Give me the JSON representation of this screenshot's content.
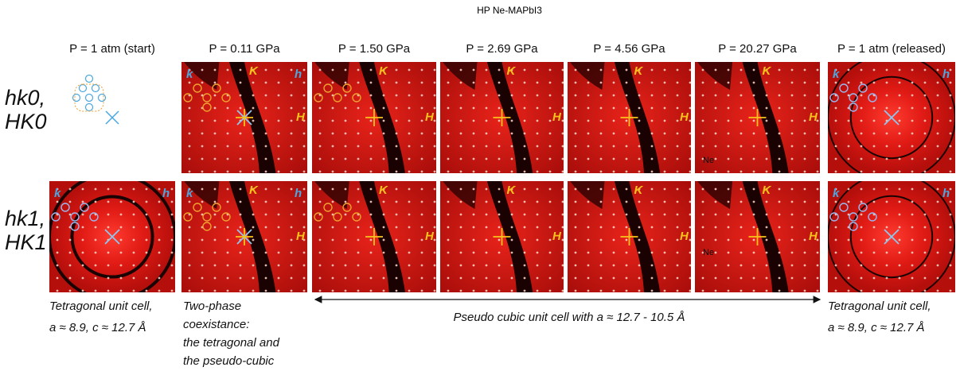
{
  "title": "HP Ne-MAPbI3",
  "columns": [
    "P = 1 atm (start)",
    "P = 0.11 GPa",
    "P = 1.50 GPa",
    "P = 2.69 GPa",
    "P = 4.56 GPa",
    "P = 20.27 GPa",
    "P = 1 atm (released)"
  ],
  "rows": [
    {
      "line1": "hk0,",
      "line2": "HK0"
    },
    {
      "line1": "hk1,",
      "line2": "HK1"
    }
  ],
  "axis_labels": {
    "k": "k",
    "h": "h",
    "K": "K",
    "H": "H",
    "ne": "Ne"
  },
  "captions": {
    "start": [
      "Tetragonal unit cell,",
      "a ≈ 8.9, c ≈ 12.7 Å"
    ],
    "two_phase": [
      "Two-phase",
      "coexistance:",
      "the tetragonal and",
      "the pseudo-cubic"
    ],
    "pseudo_cubic": "Pseudo cubic unit cell with a ≈ 12.7 - 10.5 Å",
    "released": [
      "Tetragonal unit cell,",
      "a ≈ 8.9, c ≈ 12.7 Å"
    ]
  }
}
